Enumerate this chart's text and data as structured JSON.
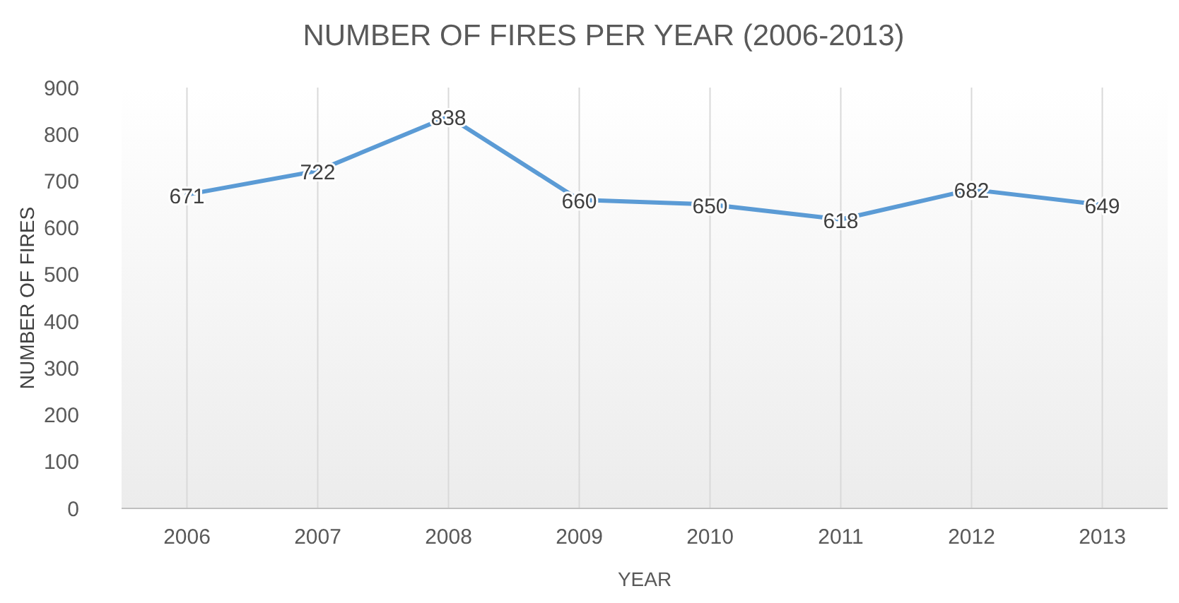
{
  "chart_data": {
    "type": "line",
    "title": "NUMBER OF FIRES  PER YEAR (2006-2013)",
    "xlabel": "YEAR",
    "ylabel": "NUMBER OF FIRES",
    "categories": [
      "2006",
      "2007",
      "2008",
      "2009",
      "2010",
      "2011",
      "2012",
      "2013"
    ],
    "series": [
      {
        "color": "#5b9bd5",
        "values": [
          671,
          722,
          838,
          660,
          650,
          618,
          682,
          649
        ]
      }
    ],
    "ylim": [
      0,
      900
    ],
    "yticks": [
      0,
      100,
      200,
      300,
      400,
      500,
      600,
      700,
      800,
      900
    ],
    "grid": "x",
    "data_labels": true,
    "marker": "none",
    "line_style": "solid"
  }
}
